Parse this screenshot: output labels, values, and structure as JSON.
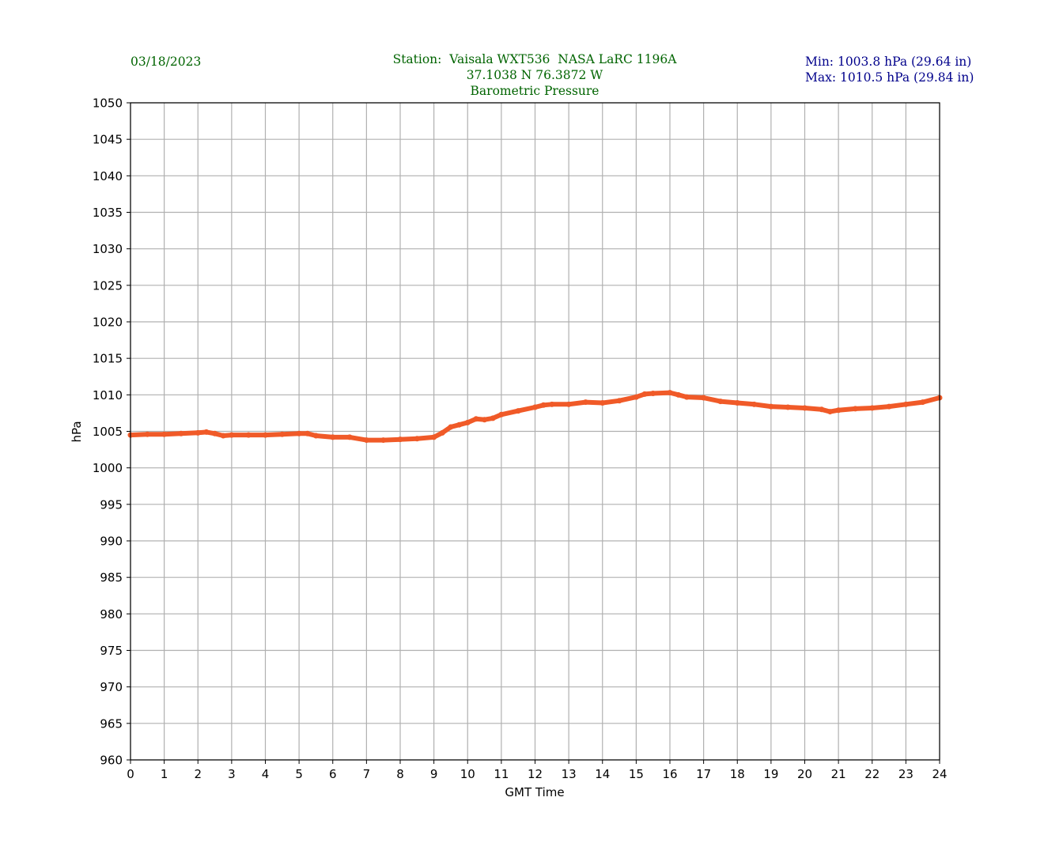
{
  "header": {
    "date": "03/18/2023",
    "station_line": "Station:  Vaisala WXT536  NASA LaRC 1196A",
    "coords_line": "37.1038 N 76.3872 W",
    "title_line": "Barometric Pressure",
    "min_line": "Min: 1003.8 hPa (29.64 in)",
    "max_line": "Max: 1010.5 hPa (29.84 in)"
  },
  "colors": {
    "series": "#f05a28",
    "title": "#006400",
    "minmax": "#00008b",
    "grid": "#b0b0b0"
  },
  "chart_data": {
    "type": "line",
    "title": "Barometric Pressure",
    "xlabel": "GMT Time",
    "ylabel": "hPa",
    "xlim": [
      0,
      24
    ],
    "ylim": [
      960,
      1050
    ],
    "grid": true,
    "xticks": [
      0,
      1,
      2,
      3,
      4,
      5,
      6,
      7,
      8,
      9,
      10,
      11,
      12,
      13,
      14,
      15,
      16,
      17,
      18,
      19,
      20,
      21,
      22,
      23,
      24
    ],
    "yticks": [
      960,
      965,
      970,
      975,
      980,
      985,
      990,
      995,
      1000,
      1005,
      1010,
      1015,
      1020,
      1025,
      1030,
      1035,
      1040,
      1045,
      1050
    ],
    "series": [
      {
        "name": "Pressure",
        "x": [
          0,
          0.5,
          1,
          1.5,
          2,
          2.25,
          2.5,
          2.75,
          3,
          3.5,
          4,
          4.5,
          5,
          5.25,
          5.5,
          6,
          6.5,
          7,
          7.5,
          8,
          8.5,
          9,
          9.25,
          9.5,
          9.75,
          10,
          10.25,
          10.5,
          10.75,
          11,
          11.5,
          12,
          12.25,
          12.5,
          13,
          13.5,
          14,
          14.5,
          15,
          15.25,
          15.5,
          16,
          16.25,
          16.5,
          17,
          17.5,
          18,
          18.5,
          19,
          19.5,
          20,
          20.5,
          20.75,
          21,
          21.5,
          22,
          22.5,
          23,
          23.5,
          24
        ],
        "y": [
          1004.5,
          1004.6,
          1004.6,
          1004.7,
          1004.8,
          1004.9,
          1004.7,
          1004.4,
          1004.5,
          1004.5,
          1004.5,
          1004.6,
          1004.7,
          1004.7,
          1004.4,
          1004.2,
          1004.2,
          1003.8,
          1003.8,
          1003.9,
          1004.0,
          1004.2,
          1004.8,
          1005.6,
          1005.9,
          1006.2,
          1006.7,
          1006.6,
          1006.8,
          1007.3,
          1007.8,
          1008.3,
          1008.6,
          1008.7,
          1008.7,
          1009.0,
          1008.9,
          1009.2,
          1009.7,
          1010.1,
          1010.2,
          1010.3,
          1010.0,
          1009.7,
          1009.6,
          1009.1,
          1008.9,
          1008.7,
          1008.4,
          1008.3,
          1008.2,
          1008.0,
          1007.7,
          1007.9,
          1008.1,
          1008.2,
          1008.4,
          1008.7,
          1009.0,
          1009.6
        ]
      }
    ]
  }
}
